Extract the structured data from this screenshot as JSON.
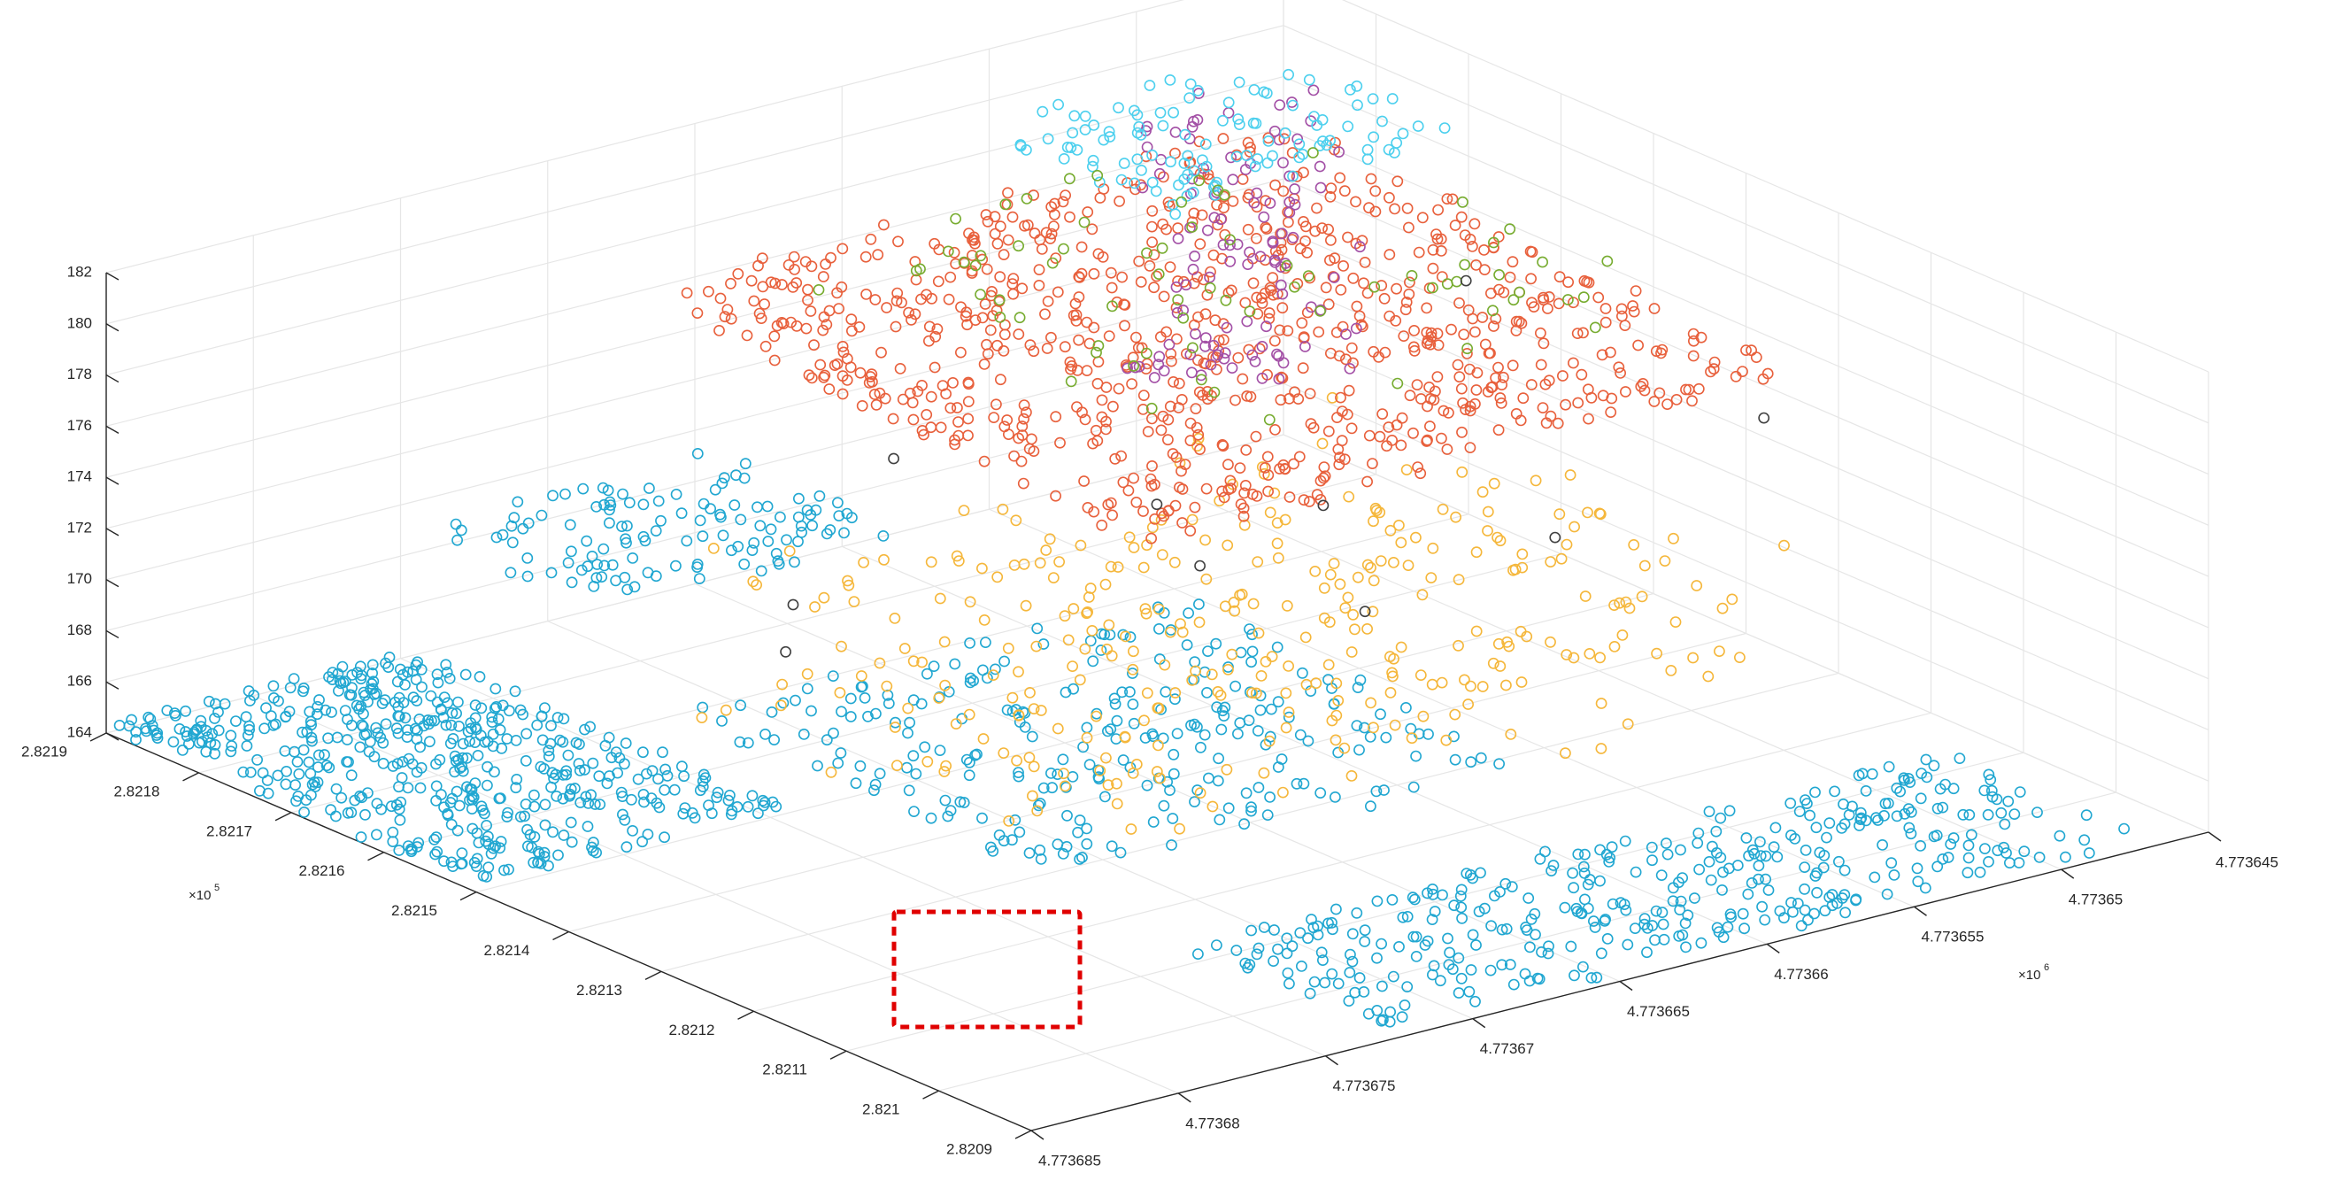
{
  "chart_data": {
    "type": "scatter",
    "title": "",
    "axes": {
      "x": {
        "label": "",
        "exponent_label": "×10",
        "exponent_power": "5",
        "ticks": [
          "2.8219",
          "2.8218",
          "2.8217",
          "2.8216",
          "2.8215",
          "2.8214",
          "2.8213",
          "2.8212",
          "2.8211",
          "2.821",
          "2.8209"
        ],
        "range": [
          282090,
          282190
        ]
      },
      "y": {
        "label": "",
        "exponent_label": "×10",
        "exponent_power": "6",
        "ticks": [
          "4.773685",
          "4.77368",
          "4.773675",
          "4.77367",
          "4.773665",
          "4.77366",
          "4.773655",
          "4.77365",
          "4.773645"
        ],
        "range": [
          4773645,
          4773685
        ]
      },
      "z": {
        "label": "",
        "ticks": [
          "164",
          "166",
          "168",
          "170",
          "172",
          "174",
          "176",
          "178",
          "180",
          "182"
        ],
        "range": [
          164,
          182
        ]
      }
    },
    "grid": true,
    "legend": "none",
    "series_colors": {
      "ground": "#21a7d1",
      "roof_red": "#e8603c",
      "vegetation_orange": "#f5b73b",
      "purple": "#a350a6",
      "cyan": "#4dd0ee",
      "green": "#77ac30",
      "dark": "#404040"
    },
    "annotation": {
      "type": "dashed-box",
      "color": "#e00000"
    }
  }
}
